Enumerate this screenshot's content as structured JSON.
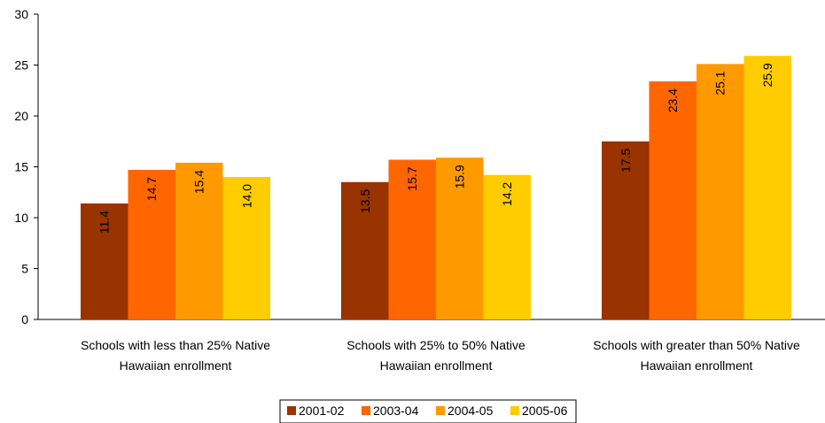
{
  "chart_data": {
    "type": "bar",
    "title": "",
    "xlabel": "",
    "ylabel": "",
    "ylim": [
      0,
      30
    ],
    "yticks": [
      0,
      5,
      10,
      15,
      20,
      25,
      30
    ],
    "grid": false,
    "legend_position": "bottom",
    "categories": [
      [
        "Schools with less than 25% Native",
        "Hawaiian enrollment"
      ],
      [
        "Schools with 25% to 50% Native",
        "Hawaiian enrollment"
      ],
      [
        "Schools with greater  than 50% Native",
        "Hawaiian enrollment"
      ]
    ],
    "series": [
      {
        "name": "2001-02",
        "color": "#993300",
        "values": [
          11.4,
          13.5,
          17.5
        ],
        "labels": [
          "11.4",
          "13.5",
          "17.5"
        ]
      },
      {
        "name": "2003-04",
        "color": "#FF6600",
        "values": [
          14.7,
          15.7,
          23.4
        ],
        "labels": [
          "14.7",
          "15.7",
          "23.4"
        ]
      },
      {
        "name": "2004-05",
        "color": "#FF9900",
        "values": [
          15.4,
          15.9,
          25.1
        ],
        "labels": [
          "15.4",
          "15.9",
          "25.1"
        ]
      },
      {
        "name": "2005-06",
        "color": "#FFCC00",
        "values": [
          14.0,
          14.2,
          25.9
        ],
        "labels": [
          "14.0",
          "14.2",
          "25.9"
        ]
      }
    ]
  }
}
